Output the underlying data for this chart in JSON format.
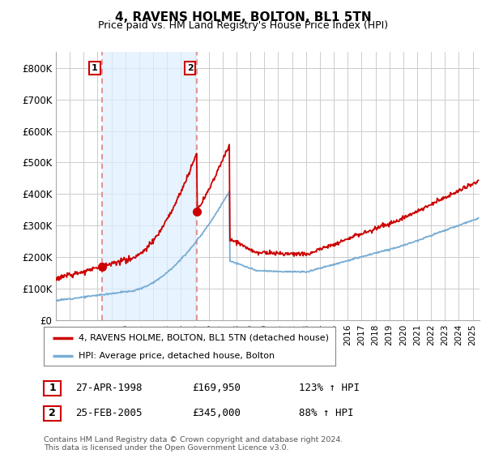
{
  "title": "4, RAVENS HOLME, BOLTON, BL1 5TN",
  "subtitle": "Price paid vs. HM Land Registry's House Price Index (HPI)",
  "hpi_label": "HPI: Average price, detached house, Bolton",
  "property_label": "4, RAVENS HOLME, BOLTON, BL1 5TN (detached house)",
  "sale1_date": "27-APR-1998",
  "sale1_price": "£169,950",
  "sale1_hpi": "123% ↑ HPI",
  "sale2_date": "25-FEB-2005",
  "sale2_price": "£345,000",
  "sale2_hpi": "88% ↑ HPI",
  "footer": "Contains HM Land Registry data © Crown copyright and database right 2024.\nThis data is licensed under the Open Government Licence v3.0.",
  "sale1_year": 1998.3,
  "sale2_year": 2005.15,
  "sale1_value": 169950,
  "sale2_value": 345000,
  "property_color": "#cc0000",
  "hpi_color": "#7aadd4",
  "vline_color": "#e08080",
  "shade_color": "#ddeeff",
  "background_color": "#ffffff",
  "grid_color": "#cccccc",
  "ylim": [
    0,
    850000
  ],
  "xlim": [
    1995,
    2025.5
  ],
  "yticks": [
    0,
    100000,
    200000,
    300000,
    400000,
    500000,
    600000,
    700000,
    800000
  ],
  "ytick_labels": [
    "£0",
    "£100K",
    "£200K",
    "£300K",
    "£400K",
    "£500K",
    "£600K",
    "£700K",
    "£800K"
  ],
  "xtick_years": [
    1995,
    1996,
    1997,
    1998,
    1999,
    2000,
    2001,
    2002,
    2003,
    2004,
    2005,
    2006,
    2007,
    2008,
    2009,
    2010,
    2011,
    2012,
    2013,
    2014,
    2015,
    2016,
    2017,
    2018,
    2019,
    2020,
    2021,
    2022,
    2023,
    2024,
    2025
  ]
}
